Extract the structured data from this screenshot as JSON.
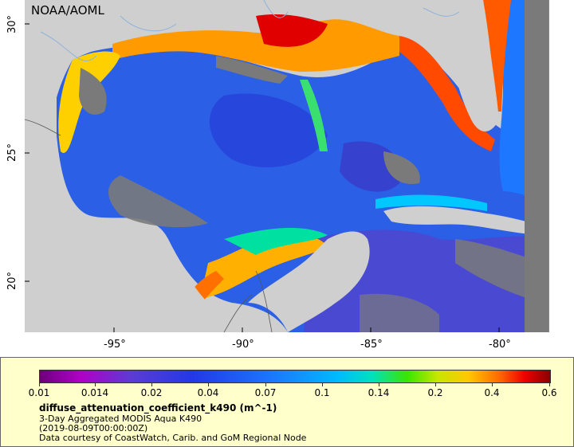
{
  "map": {
    "credit": "NOAA/AOML",
    "lat_labels": [
      "30°",
      "25°",
      "20°"
    ],
    "lon_labels": [
      "-95°",
      "-90°",
      "-85°",
      "-80°"
    ]
  },
  "legend": {
    "ticks": [
      "0.01",
      "0.014",
      "0.02",
      "0.04",
      "0.07",
      "0.1",
      "0.14",
      "0.2",
      "0.4",
      "0.6"
    ],
    "variable": "diffuse_attenuation_coefficient_k490 (m^-1)",
    "product": "3-Day Aggregated MODIS Aqua K490",
    "time": "(2019-08-09T00:00:00Z)",
    "courtesy": "Data courtesy of CoastWatch, Carib. and GoM Regional Node"
  },
  "colors": {
    "land": "#cfcfcf",
    "nodata": "#7a7a7a",
    "legend_bg": "#ffffcc"
  }
}
